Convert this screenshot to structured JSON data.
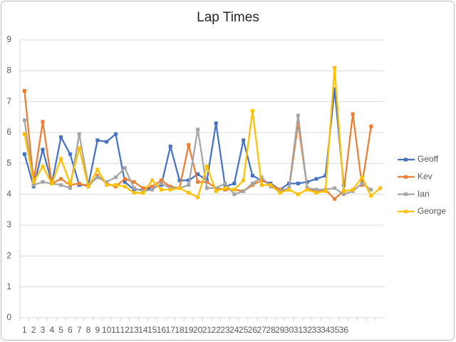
{
  "chart_data": {
    "type": "line",
    "title": "Lap Times",
    "categories": [
      "1",
      "2",
      "3",
      "4",
      "5",
      "6",
      "7",
      "8",
      "9",
      "10",
      "11",
      "12",
      "13",
      "14",
      "15",
      "16",
      "17",
      "18",
      "19",
      "20",
      "21",
      "22",
      "23",
      "24",
      "25",
      "26",
      "27",
      "28",
      "29",
      "30",
      "31",
      "32",
      "33",
      "34",
      "35",
      "36",
      null,
      null,
      null,
      null
    ],
    "ylim": [
      0,
      9
    ],
    "yticks": [
      0,
      1,
      2,
      3,
      4,
      5,
      6,
      7,
      8,
      9
    ],
    "grid": true,
    "legend": "right",
    "series": [
      {
        "name": "Geoff",
        "color": "#4472c4",
        "values": [
          5.3,
          4.25,
          5.45,
          4.35,
          5.85,
          5.3,
          4.3,
          4.3,
          5.75,
          5.7,
          5.95,
          4.4,
          4.15,
          4.15,
          4.2,
          4.3,
          5.55,
          4.45,
          4.45,
          4.65,
          4.45,
          6.3,
          4.25,
          4.35,
          5.75,
          4.6,
          4.45,
          4.35,
          4.15,
          4.35,
          4.35,
          4.4,
          4.5,
          4.6,
          7.4,
          4.3,
          null,
          null,
          null,
          null
        ]
      },
      {
        "name": "Kev",
        "color": "#ed7d31",
        "values": [
          7.35,
          4.4,
          6.35,
          4.35,
          4.5,
          4.3,
          4.35,
          4.25,
          4.6,
          4.35,
          4.25,
          4.5,
          4.4,
          4.2,
          4.25,
          4.45,
          4.25,
          4.2,
          5.6,
          4.4,
          4.4,
          4.2,
          4.15,
          4.15,
          4.1,
          4.3,
          4.45,
          4.3,
          4.15,
          4.15,
          6.3,
          4.2,
          4.1,
          4.15,
          3.85,
          4.1,
          6.6,
          4.3,
          6.2,
          null
        ]
      },
      {
        "name": "Ian",
        "color": "#a5a5a5",
        "values": [
          6.4,
          4.3,
          4.4,
          4.35,
          4.3,
          4.2,
          5.95,
          4.3,
          4.55,
          4.4,
          4.55,
          4.85,
          4.2,
          4.1,
          4.15,
          4.35,
          4.2,
          4.2,
          4.3,
          6.1,
          4.2,
          4.2,
          4.35,
          4.0,
          4.1,
          4.35,
          4.55,
          4.25,
          4.1,
          4.2,
          6.55,
          4.2,
          4.15,
          4.15,
          4.2,
          4.0,
          4.1,
          4.35,
          4.15,
          null
        ]
      },
      {
        "name": "George",
        "color": "#ffc000",
        "values": [
          5.95,
          4.4,
          4.9,
          4.35,
          5.15,
          4.35,
          5.5,
          4.25,
          4.8,
          4.3,
          4.3,
          4.25,
          4.05,
          4.05,
          4.45,
          4.15,
          4.15,
          4.2,
          4.05,
          3.9,
          4.9,
          4.1,
          4.2,
          4.15,
          4.45,
          6.7,
          4.3,
          4.3,
          4.05,
          4.15,
          4.0,
          4.15,
          4.05,
          4.1,
          8.1,
          4.1,
          4.15,
          4.55,
          3.95,
          4.2
        ]
      }
    ]
  }
}
